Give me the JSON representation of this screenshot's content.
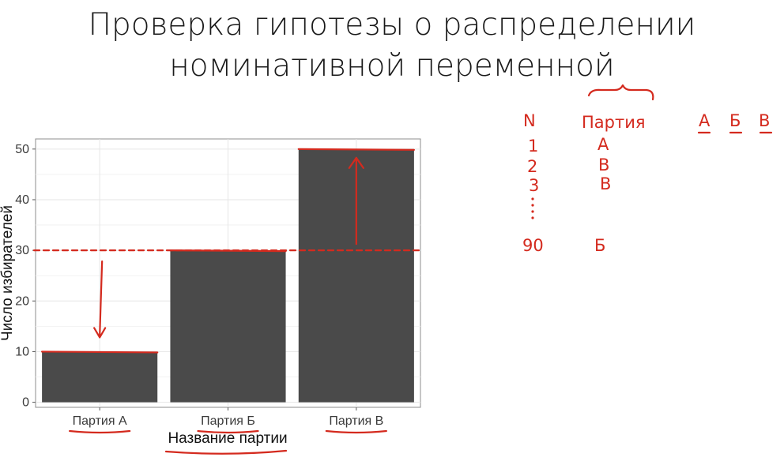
{
  "slide": {
    "title_line1": "Проверка гипотезы о распределении",
    "title_line2": "номинативной переменной"
  },
  "chart_data": {
    "type": "bar",
    "categories": [
      "Партия А",
      "Партия Б",
      "Партия В"
    ],
    "values": [
      10,
      30,
      50
    ],
    "xlabel": "Название партии",
    "ylabel": "Число избирателей",
    "ylim": [
      -1,
      52
    ],
    "yticks": [
      0,
      10,
      20,
      30,
      40,
      50
    ],
    "grid": true,
    "bar_color": "#4a4a4a",
    "expected_value": 30
  },
  "annotations": {
    "color": "#d42a1e",
    "table_headers": [
      "N",
      "Партия"
    ],
    "rows": [
      {
        "n": "1",
        "party": "А"
      },
      {
        "n": "2",
        "party": "В"
      },
      {
        "n": "3",
        "party": "В"
      },
      {
        "n": "90",
        "party": "Б"
      }
    ],
    "levels": [
      "А",
      "Б",
      "В"
    ]
  }
}
